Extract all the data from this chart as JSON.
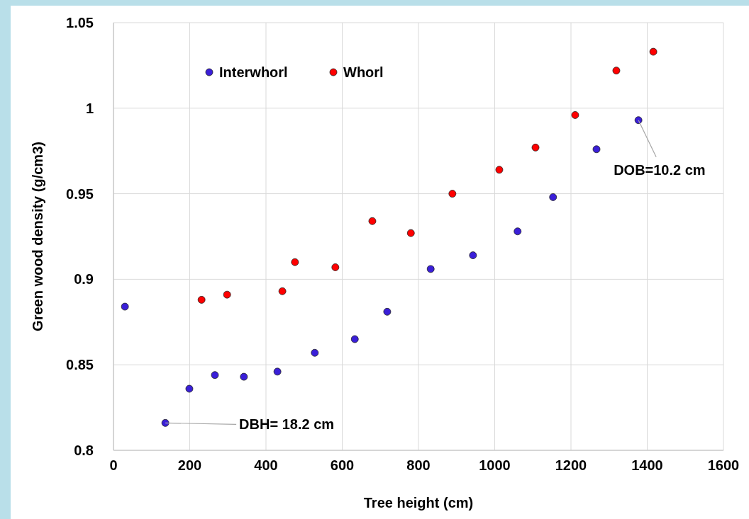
{
  "chart_data": {
    "type": "scatter",
    "xlabel": "Tree height (cm)",
    "ylabel": "Green wood density (g/cm3)",
    "xlim": [
      0,
      1600
    ],
    "xticks": [
      0,
      200,
      400,
      600,
      800,
      1000,
      1200,
      1400,
      1600
    ],
    "ylim": [
      0.8,
      1.05
    ],
    "yticks": [
      0.8,
      0.85,
      0.9,
      0.95,
      1,
      1.05
    ],
    "grid": true,
    "legend": "top left",
    "marker": "circle",
    "series": [
      {
        "name": "Interwhorl",
        "color": "#3a1fd8",
        "x": [
          30,
          136,
          199,
          266,
          342,
          430,
          528,
          633,
          718,
          832,
          943,
          1060,
          1153,
          1267,
          1377
        ],
        "values": [
          0.884,
          0.816,
          0.836,
          0.844,
          0.843,
          0.846,
          0.857,
          0.865,
          0.881,
          0.906,
          0.914,
          0.928,
          0.948,
          0.976,
          0.993
        ]
      },
      {
        "name": "Whorl",
        "color": "#ff0000",
        "x": [
          231,
          298,
          443,
          476,
          582,
          679,
          780,
          889,
          1012,
          1107,
          1211,
          1319,
          1416
        ],
        "values": [
          0.888,
          0.891,
          0.893,
          0.91,
          0.907,
          0.934,
          0.927,
          0.95,
          0.964,
          0.977,
          0.996,
          1.022,
          1.033
        ]
      }
    ],
    "annotations": [
      {
        "text": "DBH= 18.2 cm",
        "x": 136,
        "y": 0.816
      },
      {
        "text": "DOB=10.2 cm",
        "x": 1377,
        "y": 0.993
      }
    ]
  }
}
